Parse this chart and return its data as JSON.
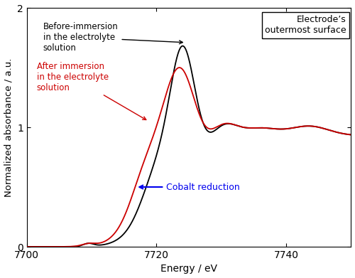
{
  "xlabel": "Energy / eV",
  "ylabel": "Normalized absorbance / a.u.",
  "xlim": [
    7700,
    7750
  ],
  "ylim": [
    0,
    2
  ],
  "xticks": [
    7700,
    7720,
    7740
  ],
  "yticks": [
    0,
    1,
    2
  ],
  "box_label": "Electrode’s\noutermost surface",
  "black_label": "Before-immersion\nin the electrolyte\nsolution",
  "red_label": "After immersion\nin the electrolyte\nsolution",
  "blue_label": "Cobalt reduction",
  "black_color": "#000000",
  "red_color": "#cc0000",
  "blue_color": "#0000ee",
  "figsize": [
    5.0,
    3.91
  ],
  "dpi": 100
}
